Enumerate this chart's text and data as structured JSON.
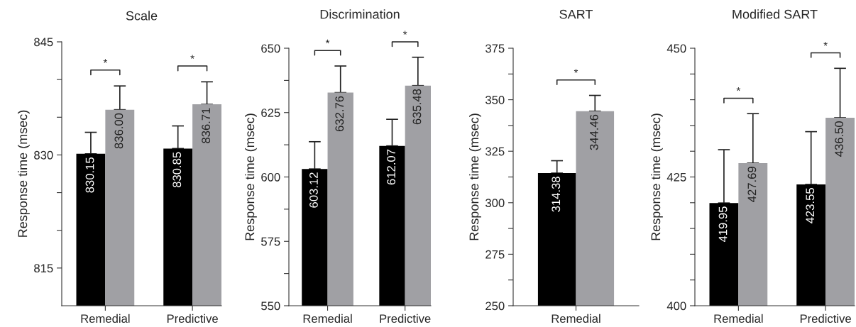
{
  "chart_data": [
    {
      "type": "bar",
      "title": "Scale",
      "ylabel": "Response time (msec)",
      "categories": [
        "Remedial",
        "Predictive"
      ],
      "ylim": [
        810,
        845
      ],
      "yticks": [
        {
          "value": 815,
          "label": "815"
        },
        {
          "value": 820,
          "label": null
        },
        {
          "value": 825,
          "label": null
        },
        830,
        {
          "value": 835,
          "label": null
        },
        {
          "value": 840,
          "label": null
        },
        845
      ],
      "series": [
        {
          "color": "#000000",
          "values": [
            830.15,
            830.85
          ],
          "errors": [
            [
              830.15,
              833.0
            ],
            [
              830.85,
              833.85
            ]
          ],
          "value_labels": [
            "830.15",
            "830.85"
          ]
        },
        {
          "color": "#a0a0a4",
          "values": [
            836.0,
            836.71
          ],
          "errors": [
            [
              836.0,
              839.15
            ],
            [
              836.71,
              839.7
            ]
          ],
          "value_labels": [
            "836.00",
            "836.71"
          ]
        }
      ],
      "annotations": [
        "*",
        "*"
      ]
    },
    {
      "type": "bar",
      "title": "Discrimination",
      "ylabel": "Response time (msec)",
      "categories": [
        "Remedial",
        "Predictive"
      ],
      "ylim": [
        550,
        650
      ],
      "yticks": [
        550,
        {
          "value": 562.5,
          "label": null
        },
        575,
        {
          "value": 587.5,
          "label": null
        },
        600,
        {
          "value": 612.5,
          "label": null
        },
        625,
        {
          "value": 637.5,
          "label": null
        },
        650
      ],
      "series": [
        {
          "color": "#000000",
          "values": [
            603.12,
            612.07
          ],
          "errors": [
            [
              603.12,
              613.7
            ],
            [
              612.07,
              622.4
            ]
          ],
          "value_labels": [
            "603.12",
            "612.07"
          ]
        },
        {
          "color": "#a0a0a4",
          "values": [
            632.76,
            635.48
          ],
          "errors": [
            [
              632.76,
              643.1
            ],
            [
              635.48,
              646.5
            ]
          ],
          "value_labels": [
            "632.76",
            "635.48"
          ]
        }
      ],
      "annotations": [
        "*",
        "*"
      ]
    },
    {
      "type": "bar",
      "title": "SART",
      "ylabel": "Response time (msec)",
      "categories": [
        "Remedial"
      ],
      "ylim": [
        250,
        375
      ],
      "yticks": [
        250,
        {
          "value": 262.5,
          "label": null
        },
        275,
        {
          "value": 287.5,
          "label": null
        },
        300,
        {
          "value": 312.5,
          "label": null
        },
        325,
        {
          "value": 337.5,
          "label": null
        },
        350,
        {
          "value": 362.5,
          "label": null
        },
        375
      ],
      "series": [
        {
          "color": "#000000",
          "values": [
            314.38
          ],
          "errors": [
            [
              314.38,
              320.4
            ]
          ],
          "value_labels": [
            "314.38"
          ]
        },
        {
          "color": "#a0a0a4",
          "values": [
            344.46
          ],
          "errors": [
            [
              344.46,
              352.1
            ]
          ],
          "value_labels": [
            "344.46"
          ]
        }
      ],
      "annotations": [
        "*"
      ]
    },
    {
      "type": "bar",
      "title": "Modified SART",
      "ylabel": "Response time (msec)",
      "categories": [
        "Remedial",
        "Predictive"
      ],
      "ylim": [
        400,
        450
      ],
      "yticks": [
        400,
        {
          "value": 405,
          "label": null
        },
        {
          "value": 410,
          "label": null
        },
        {
          "value": 415,
          "label": null
        },
        {
          "value": 420,
          "label": null
        },
        425,
        {
          "value": 430,
          "label": null
        },
        {
          "value": 435,
          "label": null
        },
        {
          "value": 440,
          "label": null
        },
        {
          "value": 445,
          "label": null
        },
        450
      ],
      "series": [
        {
          "color": "#000000",
          "values": [
            419.95,
            423.55
          ],
          "errors": [
            [
              419.95,
              430.3
            ],
            [
              423.55,
              433.8
            ]
          ],
          "value_labels": [
            "419.95",
            "423.55"
          ]
        },
        {
          "color": "#a0a0a4",
          "values": [
            427.69,
            436.5
          ],
          "errors": [
            [
              427.69,
              437.3
            ],
            [
              436.5,
              446.1
            ]
          ],
          "value_labels": [
            "427.69",
            "436.50"
          ]
        }
      ],
      "annotations": [
        "*",
        "*"
      ]
    }
  ]
}
